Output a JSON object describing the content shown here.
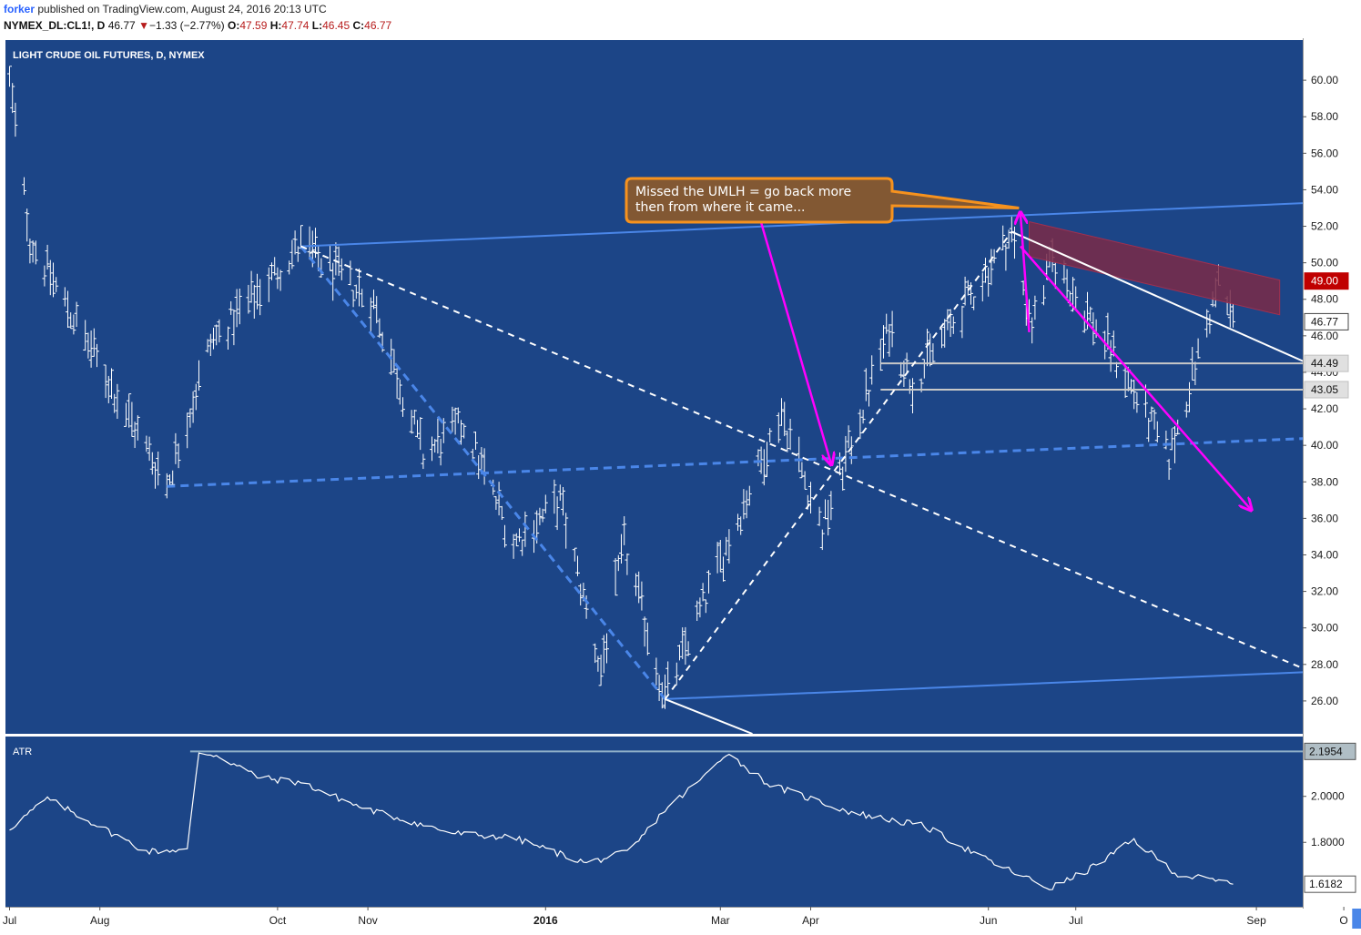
{
  "header": {
    "author": "forker",
    "published_text": " published on TradingView.com, August 24, 2016 20:13 UTC",
    "symbol": "NYMEX_DL:CL1!, D",
    "last": "46.77",
    "change_arrow": "▼",
    "change": "−1.33 (−2.77%)",
    "open_label": "O:",
    "open": "47.59",
    "high_label": "H:",
    "high": "47.74",
    "low_label": "L:",
    "low": "46.45",
    "close_label": "C:",
    "close": "46.77"
  },
  "colors": {
    "panel_bg": "#1c4587",
    "bar": "#ffffff",
    "fork": "#4a86e8",
    "magenta": "#ff00ff",
    "annotation_fill": "#8b5a2b",
    "annotation_border": "#f6921e",
    "zone": "#7a2a48",
    "price_tag": "#ffffff",
    "red_tag": "#c00000"
  },
  "chart_data": {
    "type": "bar",
    "title": "LIGHT CRUDE OIL FUTURES, D, NYMEX",
    "x_ticks": [
      "Jul",
      "Aug",
      "Oct",
      "Nov",
      "2016",
      "Mar",
      "Apr",
      "Jun",
      "Jul",
      "Sep",
      "O"
    ],
    "x_tick_bold": "2016",
    "cursor_date": "2016-10-17",
    "ylim": [
      24.2,
      62.2
    ],
    "y_ticks": [
      26,
      28,
      30,
      32,
      34,
      36,
      38,
      40,
      42,
      44,
      46,
      48,
      50,
      52,
      54,
      56,
      58,
      60
    ],
    "price_tags": [
      {
        "value": 49.0,
        "label": "49.00",
        "style": "red"
      },
      {
        "value": 46.77,
        "label": "46.77",
        "style": "white"
      },
      {
        "value": 44.49,
        "label": "44.49",
        "style": "grey"
      },
      {
        "value": 43.05,
        "label": "43.05",
        "style": "grey"
      }
    ],
    "horizontal_levels": [
      44.49,
      43.05
    ],
    "anchors": [
      {
        "date": "2015-07-01",
        "price": 59.9
      },
      {
        "date": "2015-07-08",
        "price": 51.2
      },
      {
        "date": "2015-08-24",
        "price": 37.75
      },
      {
        "date": "2015-09-08",
        "price": 45.5
      },
      {
        "date": "2015-10-09",
        "price": 50.9
      },
      {
        "date": "2015-11-03",
        "price": 47.7
      },
      {
        "date": "2015-11-20",
        "price": 39.4
      },
      {
        "date": "2015-12-04",
        "price": 41.1
      },
      {
        "date": "2015-12-21",
        "price": 34.6
      },
      {
        "date": "2016-01-06",
        "price": 36.9
      },
      {
        "date": "2016-01-20",
        "price": 27.6
      },
      {
        "date": "2016-01-28",
        "price": 34.5
      },
      {
        "date": "2016-02-11",
        "price": 26.1
      },
      {
        "date": "2016-03-22",
        "price": 41.8
      },
      {
        "date": "2016-04-05",
        "price": 35.3
      },
      {
        "date": "2016-04-28",
        "price": 46.4
      },
      {
        "date": "2016-05-06",
        "price": 43.3
      },
      {
        "date": "2016-06-09",
        "price": 51.5
      },
      {
        "date": "2016-06-16",
        "price": 46.5
      },
      {
        "date": "2016-06-23",
        "price": 50.1
      },
      {
        "date": "2016-07-14",
        "price": 44.9
      },
      {
        "date": "2016-08-02",
        "price": 39.2
      },
      {
        "date": "2016-08-19",
        "price": 48.8
      },
      {
        "date": "2016-08-24",
        "price": 46.77
      }
    ],
    "atr": {
      "ylim": [
        1.52,
        2.26
      ],
      "y_ticks": [
        1.8,
        2.0
      ],
      "y_tick_labels": [
        "1.8000",
        "2.0000"
      ],
      "last": 1.6182,
      "last_label": "1.6182",
      "level": 2.1954,
      "level_label": "2.1954",
      "title": "ATR",
      "anchors": [
        {
          "date": "2015-07-01",
          "v": 1.86
        },
        {
          "date": "2015-07-14",
          "v": 1.99
        },
        {
          "date": "2015-08-17",
          "v": 1.76
        },
        {
          "date": "2015-08-31",
          "v": 1.77
        },
        {
          "date": "2015-09-04",
          "v": 2.19
        },
        {
          "date": "2015-09-10",
          "v": 2.18
        },
        {
          "date": "2015-09-25",
          "v": 2.08
        },
        {
          "date": "2015-10-09",
          "v": 2.06
        },
        {
          "date": "2015-10-30",
          "v": 1.95
        },
        {
          "date": "2015-11-30",
          "v": 1.84
        },
        {
          "date": "2015-12-21",
          "v": 1.82
        },
        {
          "date": "2016-01-15",
          "v": 1.71
        },
        {
          "date": "2016-01-30",
          "v": 1.76
        },
        {
          "date": "2016-02-10",
          "v": 1.93
        },
        {
          "date": "2016-02-24",
          "v": 2.08
        },
        {
          "date": "2016-03-03",
          "v": 2.19
        },
        {
          "date": "2016-03-18",
          "v": 2.05
        },
        {
          "date": "2016-04-15",
          "v": 1.93
        },
        {
          "date": "2016-05-10",
          "v": 1.87
        },
        {
          "date": "2016-06-01",
          "v": 1.72
        },
        {
          "date": "2016-06-22",
          "v": 1.6
        },
        {
          "date": "2016-07-04",
          "v": 1.67
        },
        {
          "date": "2016-07-21",
          "v": 1.81
        },
        {
          "date": "2016-08-05",
          "v": 1.66
        },
        {
          "date": "2016-08-24",
          "v": 1.62
        }
      ]
    },
    "lines": [
      {
        "id": "upper-median-line-half",
        "style": "solid-blue",
        "from": {
          "date": "2015-10-09",
          "price": 50.9
        },
        "to": {
          "date": "2016-10-21",
          "price": 53.5
        }
      },
      {
        "id": "lower-parallel-blue",
        "style": "solid-blue",
        "from": {
          "date": "2016-02-11",
          "price": 26.1
        },
        "to": {
          "date": "2016-10-21",
          "price": 27.8
        }
      },
      {
        "id": "median-line-dashed-blue",
        "style": "dashed-blue",
        "from": {
          "date": "2015-08-24",
          "price": 37.75
        },
        "to": {
          "date": "2016-10-21",
          "price": 40.6
        }
      },
      {
        "id": "fork-left-leg",
        "style": "dashed-blue",
        "from": {
          "date": "2015-10-09",
          "price": 50.9
        },
        "to": {
          "date": "2016-02-11",
          "price": 26.1
        }
      },
      {
        "id": "white-dashed-down",
        "style": "dashed-white",
        "from": {
          "date": "2015-10-09",
          "price": 50.9
        },
        "to": {
          "date": "2016-10-21",
          "price": 25.5
        }
      },
      {
        "id": "white-dashed-up",
        "style": "dashed-white",
        "from": {
          "date": "2016-02-11",
          "price": 26.1
        },
        "to": {
          "date": "2016-06-09",
          "price": 51.7
        }
      },
      {
        "id": "white-solid-from-low",
        "style": "solid-white",
        "from": {
          "date": "2016-02-11",
          "price": 26.1
        },
        "to": {
          "date": "2016-03-12",
          "price": 24.2
        }
      },
      {
        "id": "white-solid-from-high",
        "style": "solid-white",
        "from": {
          "date": "2016-06-09",
          "price": 51.7
        },
        "to": {
          "date": "2016-10-21",
          "price": 42.2
        }
      }
    ],
    "arrows": [
      {
        "id": "arrow-to-umlh",
        "from": {
          "date": "2016-06-15",
          "price": 46.2
        },
        "to": {
          "date": "2016-06-12",
          "price": 52.7
        }
      },
      {
        "id": "arrow-to-median",
        "from": {
          "date": "2016-03-15",
          "price": 52.2
        },
        "to": {
          "date": "2016-04-08",
          "price": 39.0
        }
      },
      {
        "id": "arrow-down-projection",
        "from": {
          "date": "2016-06-12",
          "price": 50.9
        },
        "to": {
          "date": "2016-08-30",
          "price": 36.5
        }
      }
    ],
    "zone": {
      "p1": {
        "date": "2016-06-15",
        "price": 51.3
      },
      "p2": {
        "date": "2016-09-09",
        "price": 48.1
      },
      "thickness": 1.9
    },
    "annotation": {
      "text_lines": [
        "Missed the UMLH = go back more",
        "then from where it came..."
      ],
      "anchor": {
        "date": "2016-06-09",
        "price": 52.7
      }
    }
  }
}
